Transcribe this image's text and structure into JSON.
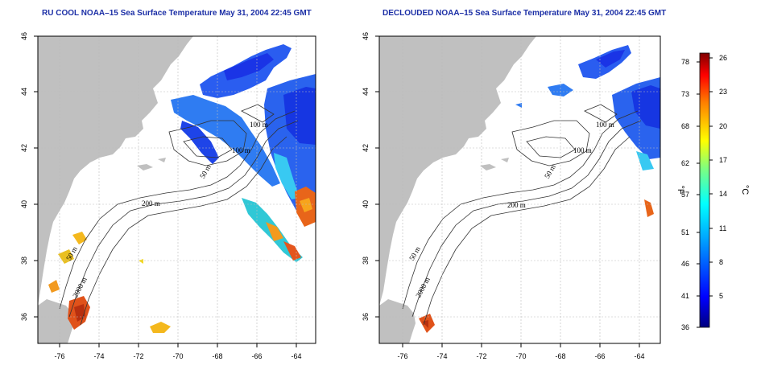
{
  "left_map": {
    "title": "RU COOL NOAA–15 Sea Surface Temperature May 31, 2004 22:45 GMT",
    "contour_labels": [
      "100 m",
      "100 m",
      "50 m",
      "200 m",
      "50 m",
      "2000 m"
    ]
  },
  "right_map": {
    "title": "DECLOUDED NOAA–15 Sea Surface Temperature May 31, 2004 22:45 GMT",
    "contour_labels": [
      "100 m",
      "100 m",
      "50 m",
      "200 m",
      "50 m",
      "2000 m"
    ]
  },
  "axes": {
    "lat_ticks": [
      "46",
      "44",
      "42",
      "40",
      "38",
      "36"
    ],
    "lon_ticks": [
      "-76",
      "-74",
      "-72",
      "-70",
      "-68",
      "-66",
      "-64"
    ],
    "lat_range": [
      35,
      46
    ],
    "lon_range": [
      -77,
      -63
    ]
  },
  "colorbar": {
    "fahrenheit_unit": "°F",
    "celsius_unit": "°C",
    "fahrenheit_ticks": [
      "78",
      "73",
      "68",
      "62",
      "57",
      "51",
      "46",
      "41",
      "36"
    ],
    "celsius_ticks": [
      "26",
      "23",
      "20",
      "17",
      "14",
      "11",
      "8",
      "5"
    ],
    "colors": [
      "#00007f",
      "#0000ff",
      "#007fff",
      "#00ffff",
      "#7fff7f",
      "#ffff00",
      "#ff7f00",
      "#ff0000",
      "#7f0000"
    ]
  },
  "colors": {
    "land": "#c0c0c0",
    "ocean": "#ffffff",
    "title": "#1c2fa6",
    "grid": "#bbbbbb"
  }
}
